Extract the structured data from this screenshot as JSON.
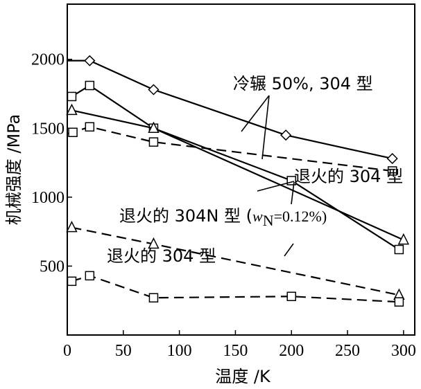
{
  "chart_data": {
    "type": "line",
    "xlabel": "温度 /K",
    "ylabel": "机械强度 /MPa",
    "xlim": [
      0,
      310
    ],
    "ylim": [
      0,
      2400
    ],
    "x_ticks": [
      0,
      50,
      100,
      150,
      200,
      250,
      300
    ],
    "y_ticks": [
      500,
      1000,
      1500,
      2000
    ],
    "series": [
      {
        "marker": "diamond",
        "dash": "solid",
        "points": [
          [
            0,
            1990
          ],
          [
            20,
            1990
          ],
          [
            77,
            1780
          ],
          [
            195,
            1450
          ],
          [
            290,
            1280
          ]
        ]
      },
      {
        "marker": "square",
        "dash": "dashed",
        "points": [
          [
            0,
            1460
          ],
          [
            5,
            1470
          ],
          [
            20,
            1510
          ],
          [
            77,
            1400
          ],
          [
            290,
            1190
          ]
        ]
      },
      {
        "marker": "square",
        "dash": "solid",
        "points": [
          [
            4,
            1730
          ],
          [
            20,
            1810
          ],
          [
            77,
            1500
          ],
          [
            200,
            1120
          ],
          [
            296,
            620
          ]
        ]
      },
      {
        "marker": "triangle",
        "dash": "solid",
        "points": [
          [
            4,
            1630
          ],
          [
            77,
            1500
          ],
          [
            300,
            690
          ]
        ]
      },
      {
        "marker": "triangle",
        "dash": "dashed",
        "points": [
          [
            4,
            780
          ],
          [
            77,
            660
          ],
          [
            296,
            290
          ]
        ]
      },
      {
        "marker": "square",
        "dash": "dashed",
        "points": [
          [
            4,
            390
          ],
          [
            20,
            430
          ],
          [
            77,
            270
          ],
          [
            200,
            280
          ],
          [
            296,
            240
          ]
        ]
      }
    ],
    "annotations": {
      "cold_rolled": "冷辗 50%, 304 型",
      "annealed_304_upper": "退火的 304 型",
      "annealed_304n_prefix": "退火的 304N 型 (",
      "w_symbol": "w",
      "w_subscript": "N",
      "w_value": "=0.12%)",
      "annealed_304_lower": "退火的 304 型"
    }
  }
}
